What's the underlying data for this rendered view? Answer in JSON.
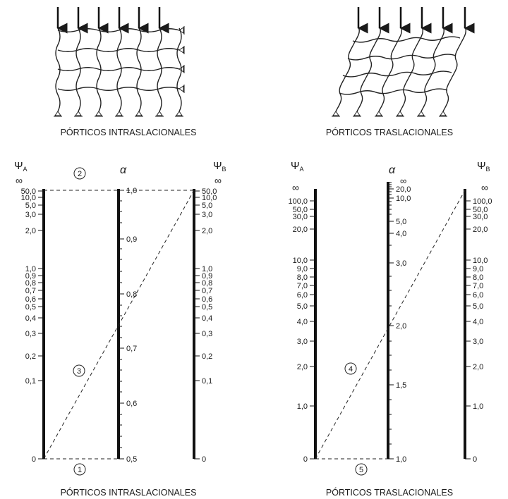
{
  "top_left": {
    "caption": "PÓRTICOS INTRASLACIONALES"
  },
  "top_right": {
    "caption": "PÓRTICOS TRASLACIONALES"
  },
  "left_nomogram": {
    "caption": "PÓRTICOS INTRASLACIONALES",
    "psi_a": {
      "label": "Ψ",
      "sub": "A"
    },
    "alpha": {
      "label": "α"
    },
    "psi_b": {
      "label": "Ψ",
      "sub": "B"
    },
    "infinity": "∞",
    "psi_ticks": [
      "50,0",
      "10,0",
      "5,0",
      "3,0",
      "2,0",
      "1,0",
      "0,9",
      "0,8",
      "0,7",
      "0,6",
      "0,5",
      "0,4",
      "0,3",
      "0,2",
      "0,1",
      "0"
    ],
    "alpha_ticks": [
      "1,0",
      "0,9",
      "0,8",
      "0,7",
      "0,6",
      "0,5"
    ],
    "markers": [
      "1",
      "2",
      "3"
    ]
  },
  "right_nomogram": {
    "caption": "PÓRTICOS TRASLACIONALES",
    "psi_a": {
      "label": "Ψ",
      "sub": "A"
    },
    "alpha": {
      "label": "α"
    },
    "psi_b": {
      "label": "Ψ",
      "sub": "B"
    },
    "infinity": "∞",
    "psi_ticks": [
      "100,0",
      "50,0",
      "30,0",
      "20,0",
      "10,0",
      "9,0",
      "8,0",
      "7,0",
      "6,0",
      "5,0",
      "4,0",
      "3,0",
      "2,0",
      "1,0",
      "0"
    ],
    "alpha_ticks": [
      "20,0",
      "10,0",
      "5,0",
      "4,0",
      "3,0",
      "2,0",
      "1,5",
      "1,0"
    ],
    "markers": [
      "4",
      "5"
    ]
  }
}
